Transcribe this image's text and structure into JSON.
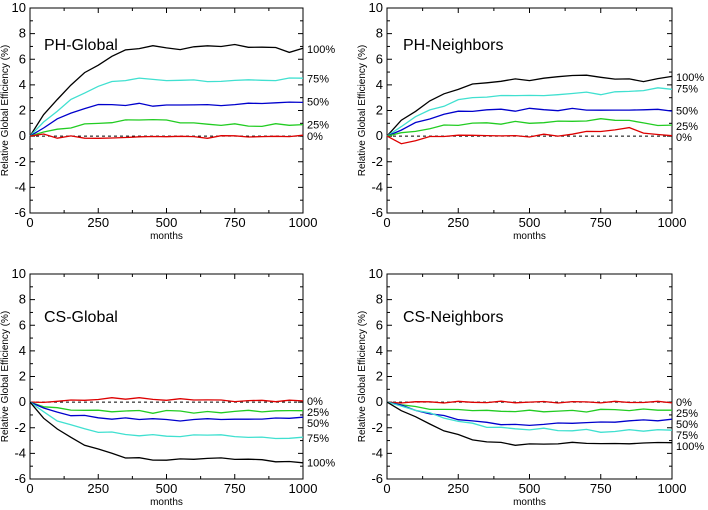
{
  "chart_data": [
    {
      "type": "line",
      "title": "PH-Global",
      "xlabel": "months",
      "ylabel": "Relative Global Efficiency (%)",
      "xlim": [
        0,
        1000
      ],
      "ylim": [
        -6,
        10
      ],
      "xticks": [
        0,
        250,
        500,
        750,
        1000
      ],
      "yticks": [
        -6,
        -4,
        -2,
        0,
        2,
        4,
        6,
        8,
        10
      ],
      "baseline": 0,
      "series": [
        {
          "name": "100%",
          "color": "#000000",
          "x": [
            0,
            50,
            100,
            150,
            200,
            250,
            300,
            350,
            400,
            450,
            500,
            550,
            600,
            650,
            700,
            750,
            800,
            850,
            900,
            950,
            1000
          ],
          "y": [
            0,
            1.6,
            2.9,
            4.0,
            4.9,
            5.6,
            6.2,
            6.7,
            6.9,
            7.0,
            6.9,
            6.8,
            6.9,
            7.1,
            7.0,
            7.1,
            7.0,
            6.9,
            6.9,
            6.6,
            6.8
          ]
        },
        {
          "name": "75%",
          "color": "#40e0d0",
          "x": [
            0,
            50,
            100,
            150,
            200,
            250,
            300,
            350,
            400,
            450,
            500,
            550,
            600,
            650,
            700,
            750,
            800,
            850,
            900,
            950,
            1000
          ],
          "y": [
            0,
            1.1,
            2.0,
            2.8,
            3.4,
            3.9,
            4.2,
            4.4,
            4.5,
            4.4,
            4.4,
            4.3,
            4.4,
            4.3,
            4.2,
            4.4,
            4.4,
            4.3,
            4.4,
            4.5,
            4.5
          ]
        },
        {
          "name": "50%",
          "color": "#0000cc",
          "x": [
            0,
            50,
            100,
            150,
            200,
            250,
            300,
            350,
            400,
            450,
            500,
            550,
            600,
            650,
            700,
            750,
            800,
            850,
            900,
            950,
            1000
          ],
          "y": [
            0,
            0.7,
            1.3,
            1.8,
            2.2,
            2.4,
            2.5,
            2.4,
            2.5,
            2.4,
            2.4,
            2.4,
            2.5,
            2.4,
            2.4,
            2.5,
            2.5,
            2.6,
            2.6,
            2.6,
            2.7
          ]
        },
        {
          "name": "25%",
          "color": "#22cc22",
          "x": [
            0,
            50,
            100,
            150,
            200,
            250,
            300,
            350,
            400,
            450,
            500,
            550,
            600,
            650,
            700,
            750,
            800,
            850,
            900,
            950,
            1000
          ],
          "y": [
            0,
            0.3,
            0.5,
            0.7,
            0.9,
            1.0,
            1.1,
            1.2,
            1.3,
            1.3,
            1.2,
            1.1,
            1.0,
            0.9,
            0.9,
            0.9,
            0.8,
            0.8,
            0.9,
            0.9,
            0.9
          ]
        },
        {
          "name": "0%",
          "color": "#dd0000",
          "x": [
            0,
            50,
            100,
            150,
            200,
            250,
            300,
            350,
            400,
            450,
            500,
            550,
            600,
            650,
            700,
            750,
            800,
            850,
            900,
            950,
            1000
          ],
          "y": [
            0,
            0.1,
            -0.1,
            0.0,
            -0.2,
            -0.1,
            -0.2,
            -0.1,
            0.0,
            -0.1,
            0.0,
            0.0,
            -0.1,
            -0.1,
            0.0,
            0.0,
            0.0,
            -0.1,
            0.0,
            0.0,
            0.0
          ]
        }
      ]
    },
    {
      "type": "line",
      "title": "PH-Neighbors",
      "xlabel": "months",
      "ylabel": "Relative Global Efficiency (%)",
      "xlim": [
        0,
        1000
      ],
      "ylim": [
        -6,
        10
      ],
      "xticks": [
        0,
        250,
        500,
        750,
        1000
      ],
      "yticks": [
        -6,
        -4,
        -2,
        0,
        2,
        4,
        6,
        8,
        10
      ],
      "baseline": 0,
      "series": [
        {
          "name": "100%",
          "color": "#000000",
          "x": [
            0,
            50,
            100,
            150,
            200,
            250,
            300,
            350,
            400,
            450,
            500,
            550,
            600,
            650,
            700,
            750,
            800,
            850,
            900,
            950,
            1000
          ],
          "y": [
            0,
            1.2,
            2.0,
            2.7,
            3.3,
            3.7,
            4.0,
            4.2,
            4.3,
            4.4,
            4.4,
            4.5,
            4.6,
            4.8,
            4.7,
            4.6,
            4.5,
            4.4,
            4.3,
            4.5,
            4.6
          ]
        },
        {
          "name": "75%",
          "color": "#40e0d0",
          "x": [
            0,
            50,
            100,
            150,
            200,
            250,
            300,
            350,
            400,
            450,
            500,
            550,
            600,
            650,
            700,
            750,
            800,
            850,
            900,
            950,
            1000
          ],
          "y": [
            0,
            0.8,
            1.5,
            2.0,
            2.4,
            2.8,
            3.0,
            3.1,
            3.1,
            3.2,
            3.2,
            3.1,
            3.3,
            3.3,
            3.4,
            3.3,
            3.4,
            3.5,
            3.6,
            3.7,
            3.7
          ]
        },
        {
          "name": "50%",
          "color": "#0000cc",
          "x": [
            0,
            50,
            100,
            150,
            200,
            250,
            300,
            350,
            400,
            450,
            500,
            550,
            600,
            650,
            700,
            750,
            800,
            850,
            900,
            950,
            1000
          ],
          "y": [
            0,
            0.5,
            1.0,
            1.4,
            1.7,
            1.9,
            2.0,
            2.0,
            2.1,
            2.0,
            2.1,
            2.1,
            2.0,
            2.1,
            2.1,
            2.0,
            2.0,
            2.1,
            2.0,
            2.1,
            2.0
          ]
        },
        {
          "name": "25%",
          "color": "#22cc22",
          "x": [
            0,
            50,
            100,
            150,
            200,
            250,
            300,
            350,
            400,
            450,
            500,
            550,
            600,
            650,
            700,
            750,
            800,
            850,
            900,
            950,
            1000
          ],
          "y": [
            0,
            0.2,
            0.4,
            0.6,
            0.8,
            0.9,
            1.0,
            1.0,
            1.0,
            1.1,
            1.0,
            1.1,
            1.1,
            1.2,
            1.2,
            1.3,
            1.3,
            1.2,
            1.0,
            0.9,
            0.8
          ]
        },
        {
          "name": "0%",
          "color": "#dd0000",
          "x": [
            0,
            50,
            100,
            150,
            200,
            250,
            300,
            350,
            400,
            450,
            500,
            550,
            600,
            650,
            700,
            750,
            800,
            850,
            900,
            950,
            1000
          ],
          "y": [
            0,
            -0.6,
            -0.3,
            -0.1,
            0.0,
            0.1,
            0.0,
            0.1,
            0.0,
            0.0,
            0.0,
            0.1,
            0.0,
            0.2,
            0.3,
            0.4,
            0.5,
            0.6,
            0.3,
            0.1,
            0.0
          ]
        }
      ]
    },
    {
      "type": "line",
      "title": "CS-Global",
      "xlabel": "months",
      "ylabel": "Relative Global Efficiency (%)",
      "xlim": [
        0,
        1000
      ],
      "ylim": [
        -6,
        10
      ],
      "xticks": [
        0,
        250,
        500,
        750,
        1000
      ],
      "yticks": [
        -6,
        -4,
        -2,
        0,
        2,
        4,
        6,
        8,
        10
      ],
      "baseline": 0,
      "series": [
        {
          "name": "0%",
          "color": "#dd0000",
          "x": [
            0,
            50,
            100,
            150,
            200,
            250,
            300,
            350,
            400,
            450,
            500,
            550,
            600,
            650,
            700,
            750,
            800,
            850,
            900,
            950,
            1000
          ],
          "y": [
            0,
            0.0,
            0.1,
            0.1,
            0.2,
            0.2,
            0.3,
            0.3,
            0.3,
            0.2,
            0.2,
            0.2,
            0.2,
            0.2,
            0.1,
            0.1,
            0.1,
            0.1,
            0.1,
            0.1,
            0.1
          ]
        },
        {
          "name": "25%",
          "color": "#22cc22",
          "x": [
            0,
            50,
            100,
            150,
            200,
            250,
            300,
            350,
            400,
            450,
            500,
            550,
            600,
            650,
            700,
            750,
            800,
            850,
            900,
            950,
            1000
          ],
          "y": [
            0,
            -0.3,
            -0.5,
            -0.6,
            -0.6,
            -0.7,
            -0.7,
            -0.7,
            -0.7,
            -0.8,
            -0.7,
            -0.7,
            -0.8,
            -0.8,
            -0.8,
            -0.7,
            -0.7,
            -0.7,
            -0.7,
            -0.7,
            -0.6
          ]
        },
        {
          "name": "50%",
          "color": "#0000cc",
          "x": [
            0,
            50,
            100,
            150,
            200,
            250,
            300,
            350,
            400,
            450,
            500,
            550,
            600,
            650,
            700,
            750,
            800,
            850,
            900,
            950,
            1000
          ],
          "y": [
            0,
            -0.5,
            -0.8,
            -1.0,
            -1.1,
            -1.2,
            -1.3,
            -1.3,
            -1.3,
            -1.3,
            -1.4,
            -1.4,
            -1.4,
            -1.3,
            -1.3,
            -1.4,
            -1.3,
            -1.3,
            -1.3,
            -1.2,
            -1.2
          ]
        },
        {
          "name": "75%",
          "color": "#40e0d0",
          "x": [
            0,
            50,
            100,
            150,
            200,
            250,
            300,
            350,
            400,
            450,
            500,
            550,
            600,
            650,
            700,
            750,
            800,
            850,
            900,
            950,
            1000
          ],
          "y": [
            0,
            -0.8,
            -1.4,
            -1.8,
            -2.1,
            -2.3,
            -2.4,
            -2.5,
            -2.6,
            -2.6,
            -2.6,
            -2.7,
            -2.6,
            -2.5,
            -2.6,
            -2.7,
            -2.7,
            -2.8,
            -2.8,
            -2.8,
            -2.8
          ]
        },
        {
          "name": "100%",
          "color": "#000000",
          "x": [
            0,
            50,
            100,
            150,
            200,
            250,
            300,
            350,
            400,
            450,
            500,
            550,
            600,
            650,
            700,
            750,
            800,
            850,
            900,
            950,
            1000
          ],
          "y": [
            0,
            -1.2,
            -2.1,
            -2.8,
            -3.3,
            -3.7,
            -4.0,
            -4.3,
            -4.4,
            -4.5,
            -4.5,
            -4.5,
            -4.4,
            -4.4,
            -4.4,
            -4.4,
            -4.5,
            -4.5,
            -4.6,
            -4.7,
            -4.7
          ]
        }
      ]
    },
    {
      "type": "line",
      "title": "CS-Neighbors",
      "xlabel": "months",
      "ylabel": "Relative Global Efficiency (%)",
      "xlim": [
        0,
        1000
      ],
      "ylim": [
        -6,
        10
      ],
      "xticks": [
        0,
        250,
        500,
        750,
        1000
      ],
      "yticks": [
        -6,
        -4,
        -2,
        0,
        2,
        4,
        6,
        8,
        10
      ],
      "baseline": 0,
      "series": [
        {
          "name": "0%",
          "color": "#dd0000",
          "x": [
            0,
            50,
            100,
            150,
            200,
            250,
            300,
            350,
            400,
            450,
            500,
            550,
            600,
            650,
            700,
            750,
            800,
            850,
            900,
            950,
            1000
          ],
          "y": [
            0,
            0.0,
            0.0,
            0.0,
            0.0,
            0.0,
            0.0,
            0.0,
            0.0,
            0.0,
            0.0,
            0.0,
            0.0,
            0.0,
            0.0,
            0.0,
            0.0,
            0.0,
            0.0,
            0.0,
            0.0
          ]
        },
        {
          "name": "25%",
          "color": "#22cc22",
          "x": [
            0,
            50,
            100,
            150,
            200,
            250,
            300,
            350,
            400,
            450,
            500,
            550,
            600,
            650,
            700,
            750,
            800,
            850,
            900,
            950,
            1000
          ],
          "y": [
            0,
            -0.2,
            -0.4,
            -0.5,
            -0.6,
            -0.6,
            -0.6,
            -0.7,
            -0.7,
            -0.7,
            -0.7,
            -0.7,
            -0.7,
            -0.7,
            -0.7,
            -0.6,
            -0.6,
            -0.6,
            -0.6,
            -0.6,
            -0.6
          ]
        },
        {
          "name": "50%",
          "color": "#0000cc",
          "x": [
            0,
            50,
            100,
            150,
            200,
            250,
            300,
            350,
            400,
            450,
            500,
            550,
            600,
            650,
            700,
            750,
            800,
            850,
            900,
            950,
            1000
          ],
          "y": [
            0,
            -0.3,
            -0.6,
            -0.9,
            -1.1,
            -1.3,
            -1.5,
            -1.6,
            -1.7,
            -1.8,
            -1.8,
            -1.7,
            -1.7,
            -1.6,
            -1.6,
            -1.6,
            -1.5,
            -1.5,
            -1.4,
            -1.4,
            -1.4
          ]
        },
        {
          "name": "75%",
          "color": "#40e0d0",
          "x": [
            0,
            50,
            100,
            150,
            200,
            250,
            300,
            350,
            400,
            450,
            500,
            550,
            600,
            650,
            700,
            750,
            800,
            850,
            900,
            950,
            1000
          ],
          "y": [
            0,
            -0.3,
            -0.6,
            -0.9,
            -1.2,
            -1.5,
            -1.7,
            -1.9,
            -2.0,
            -2.1,
            -2.1,
            -2.1,
            -2.2,
            -2.2,
            -2.2,
            -2.3,
            -2.3,
            -2.2,
            -2.2,
            -2.2,
            -2.2
          ]
        },
        {
          "name": "100%",
          "color": "#000000",
          "x": [
            0,
            50,
            100,
            150,
            200,
            250,
            300,
            350,
            400,
            450,
            500,
            550,
            600,
            650,
            700,
            750,
            800,
            850,
            900,
            950,
            1000
          ],
          "y": [
            0,
            -0.6,
            -1.2,
            -1.7,
            -2.2,
            -2.6,
            -2.9,
            -3.1,
            -3.2,
            -3.3,
            -3.3,
            -3.3,
            -3.2,
            -3.2,
            -3.2,
            -3.2,
            -3.3,
            -3.2,
            -3.2,
            -3.2,
            -3.1
          ]
        }
      ]
    }
  ]
}
